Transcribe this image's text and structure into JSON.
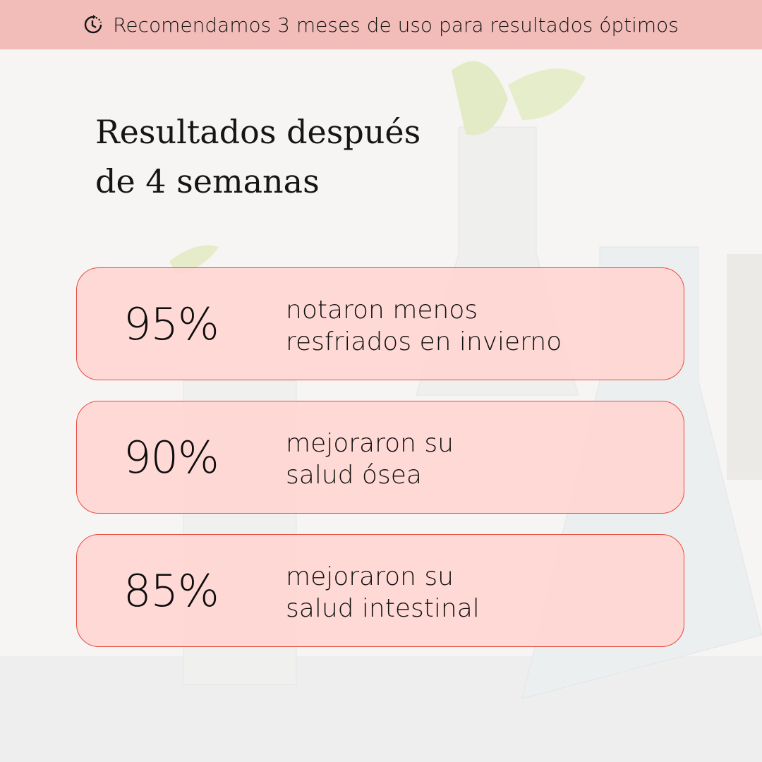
{
  "banner": {
    "icon": "clock-refresh-icon",
    "text": "Recomendamos 3 meses de uso para resultados óptimos"
  },
  "heading": {
    "line1": "Resultados después",
    "line2": "de 4 semanas"
  },
  "stats": [
    {
      "value": "95%",
      "line1": "notaron menos",
      "line2": "resfriados en invierno"
    },
    {
      "value": "90%",
      "line1": "mejoraron su",
      "line2": "salud ósea"
    },
    {
      "value": "85%",
      "line1": "mejoraron su",
      "line2": "salud intestinal"
    }
  ],
  "colors": {
    "banner": "#f2bdb9",
    "card_fill": "#ffd6d3",
    "card_border": "#ea4a3f",
    "background": "#f6f5f3"
  }
}
